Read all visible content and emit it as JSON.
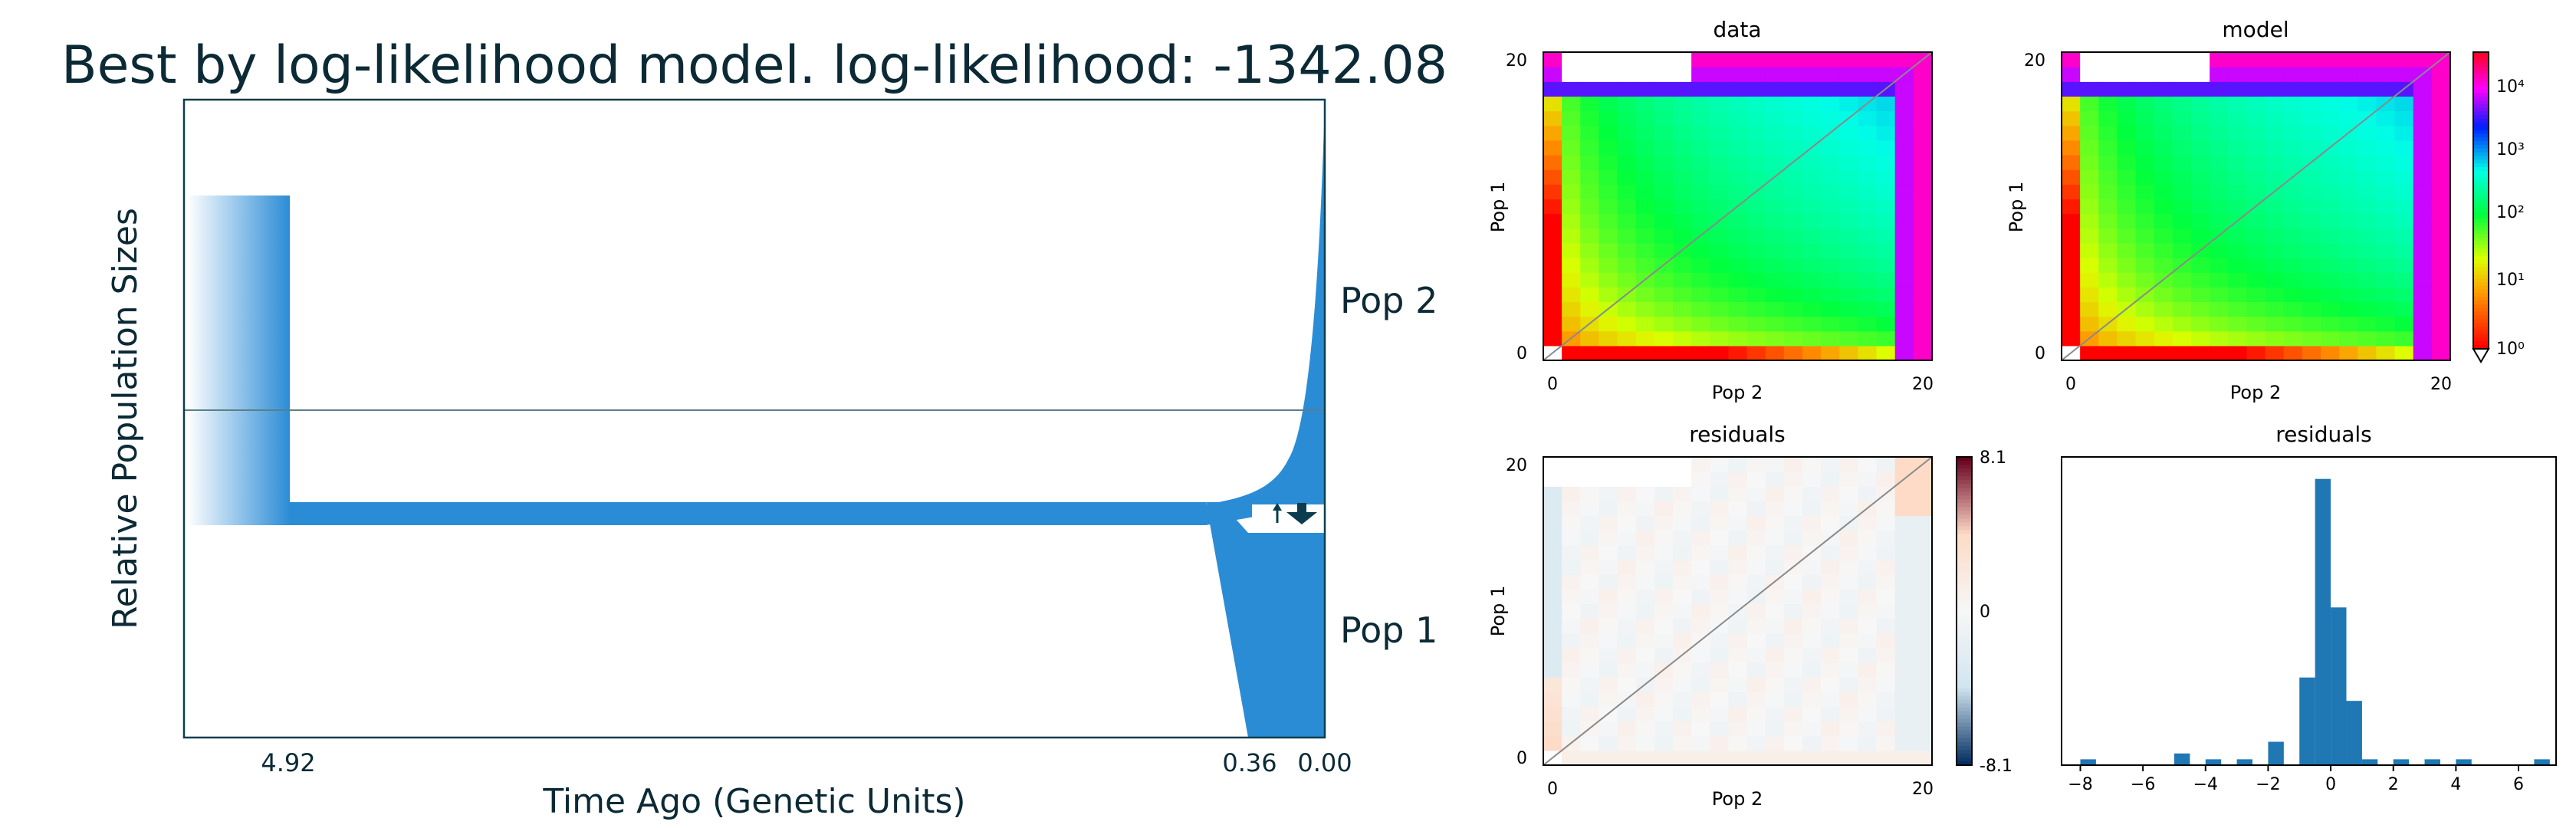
{
  "chart_data": [
    {
      "type": "area",
      "title": "Best by log-likelihood model. log-likelihood: -1342.08",
      "xlabel": "Time Ago (Genetic Units)",
      "ylabel": "Relative Population Sizes",
      "x_ticks": [
        "4.92",
        "0.36",
        "0.00"
      ],
      "populations": [
        {
          "name": "Pop 2"
        },
        {
          "name": "Pop 1"
        }
      ],
      "colors": {
        "fill": "#2b8cd6",
        "axes": "#0b3d4e",
        "arrow": "#0b3d4e"
      }
    },
    {
      "type": "heatmap",
      "title": "data",
      "xlabel": "Pop 2",
      "ylabel": "Pop 1",
      "x_ticks": [
        "0",
        "20"
      ],
      "y_ticks": [
        "0",
        "20"
      ],
      "colormap": "hsv",
      "scale": "log"
    },
    {
      "type": "heatmap",
      "title": "model",
      "xlabel": "Pop 2",
      "ylabel": "Pop 1",
      "x_ticks": [
        "0",
        "20"
      ],
      "y_ticks": [
        "0",
        "20"
      ],
      "colorbar_ticks": [
        "10⁰",
        "10¹",
        "10²",
        "10³",
        "10⁴"
      ],
      "colormap": "hsv",
      "scale": "log"
    },
    {
      "type": "heatmap",
      "title": "residuals",
      "xlabel": "Pop 2",
      "ylabel": "Pop 1",
      "x_ticks": [
        "0",
        "20"
      ],
      "y_ticks": [
        "0",
        "20"
      ],
      "colorbar_ticks": [
        "8.1",
        "0",
        "-8.1"
      ],
      "colormap": "RdBu_r",
      "range": [
        -8.1,
        8.1
      ]
    },
    {
      "type": "bar",
      "title": "residuals",
      "x_ticks": [
        "−8",
        "−6",
        "−4",
        "−2",
        "0",
        "2",
        "4",
        "6"
      ],
      "xlim": [
        -8.6,
        7.2
      ],
      "bins": [
        -8,
        -7,
        -5,
        -4,
        -3,
        -2,
        -1,
        -0.5,
        0,
        0.5,
        1,
        2,
        3,
        4,
        5,
        6.5
      ],
      "counts": [
        1,
        0,
        2,
        1,
        1,
        4,
        15,
        49,
        27,
        11,
        1,
        1,
        1,
        1,
        0,
        1
      ],
      "bin_width": 0.5,
      "color": "#1f77b4"
    }
  ]
}
